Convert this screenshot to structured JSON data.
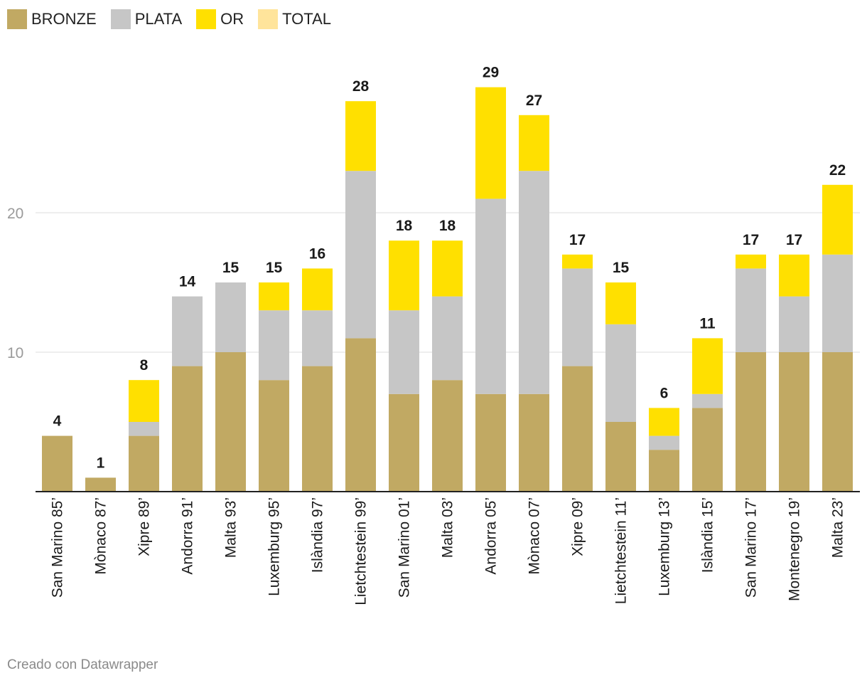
{
  "chart_data": {
    "type": "bar",
    "stacked": true,
    "title": "",
    "xlabel": "",
    "ylabel": "",
    "ylim": [
      0,
      30
    ],
    "yticks": [
      10,
      20
    ],
    "grid": true,
    "legend_position": "top-left",
    "categories": [
      "San Marino 85’",
      "Mònaco 87’",
      "Xipre 89’",
      "Andorra 91’",
      "Malta 93’",
      "Luxemburg 95’",
      "Islàndia 97’",
      "Lietchtestein 99’",
      "San Marino 01’",
      "Malta 03’",
      "Andorra 05’",
      "Mònaco 07’",
      "Xipre 09’",
      "Lietchtestein 11’",
      "Luxemburg 13’",
      "Islàndia 15’",
      "San Marino 17’",
      "Montenegro 19’",
      "Malta 23’"
    ],
    "series": [
      {
        "name": "BRONZE",
        "color": "#c1a963",
        "values": [
          4,
          1,
          4,
          9,
          10,
          8,
          9,
          11,
          7,
          8,
          7,
          7,
          9,
          5,
          3,
          6,
          10,
          10,
          10
        ]
      },
      {
        "name": "PLATA",
        "color": "#c6c6c6",
        "values": [
          0,
          0,
          1,
          5,
          5,
          5,
          4,
          12,
          6,
          6,
          14,
          16,
          7,
          7,
          1,
          1,
          6,
          4,
          7
        ]
      },
      {
        "name": "OR",
        "color": "#ffe000",
        "values": [
          0,
          0,
          3,
          0,
          0,
          2,
          3,
          5,
          5,
          4,
          8,
          4,
          1,
          3,
          2,
          4,
          1,
          3,
          5
        ]
      },
      {
        "name": "TOTAL",
        "color": "#ffe49b",
        "values": [
          4,
          1,
          8,
          14,
          15,
          15,
          16,
          28,
          18,
          18,
          29,
          27,
          17,
          15,
          6,
          11,
          17,
          17,
          22
        ]
      }
    ],
    "data_labels": [
      "4",
      "1",
      "8",
      "14",
      "15",
      "15",
      "16",
      "28",
      "18",
      "18",
      "29",
      "27",
      "17",
      "15",
      "6",
      "11",
      "17",
      "17",
      "22"
    ]
  },
  "credit": "Creado con Datawrapper"
}
